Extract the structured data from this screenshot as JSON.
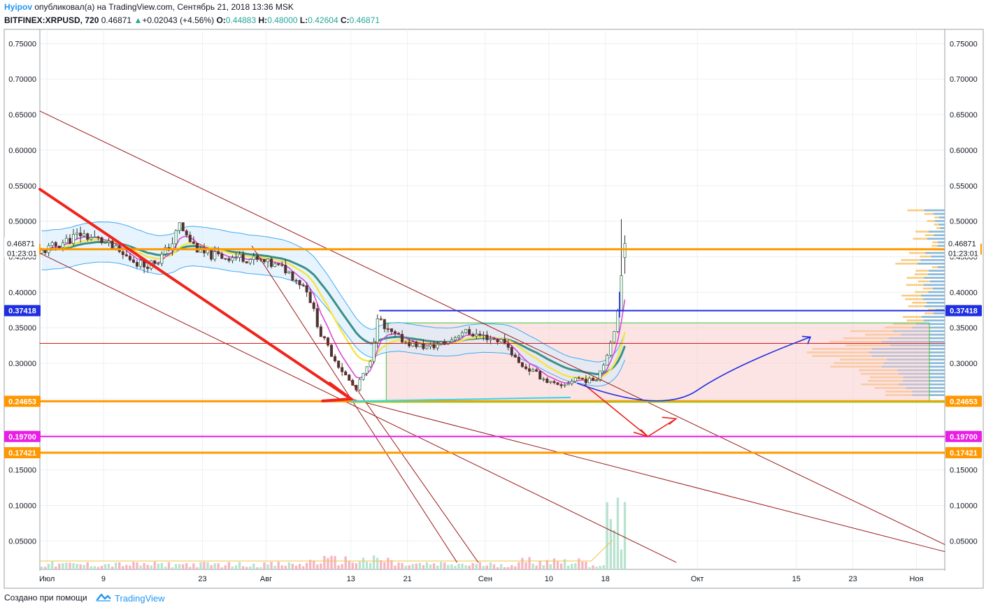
{
  "header": {
    "author": "Hyipov",
    "published_text": " опубликовал(а) на TradingView.com, Сентябрь 21, 2018 13:36 MSK",
    "symbol": "BITFINEX:XRPUSD, 720",
    "last": "0.46871",
    "change_arrow": "▲",
    "change": "+0.02043 (+4.56%)",
    "o_label": "O:",
    "o_value": "0.44883",
    "h_label": "H:",
    "h_value": "0.48000",
    "l_label": "L:",
    "l_value": "0.42604",
    "c_label": "C:",
    "c_value": "0.46871"
  },
  "footer": {
    "created_with": "Создано при помощи",
    "brand": "TradingView"
  },
  "colors": {
    "up": "#26a69a",
    "down": "#ef5350",
    "grid": "#eceff2",
    "orange": "#ff9800",
    "blue": "#1e2ee0",
    "magenta": "#e91ee6",
    "red": "#f0241b",
    "darkred": "#9b1b1b",
    "vol_up": "#b7e3cf",
    "vol_down": "#f5b5bf"
  },
  "chart_data": {
    "type": "candlestick",
    "y_range": [
      0.01,
      0.77
    ],
    "y_ticks": [
      0.75,
      0.7,
      0.65,
      0.6,
      0.55,
      0.5,
      0.45,
      0.4,
      0.35,
      0.3,
      0.25,
      0.2,
      0.15,
      0.1,
      0.05
    ],
    "y_tick_labels": [
      "0.75000",
      "0.70000",
      "0.65000",
      "0.60000",
      "0.55000",
      "0.50000",
      "0.45000",
      "0.40000",
      "0.35000",
      "0.30000",
      "0.25000",
      "0.20000",
      "0.15000",
      "0.10000",
      "0.05000"
    ],
    "x_range": [
      "2018-06-30",
      "2018-11-05"
    ],
    "x_ticks": [
      {
        "date": "2018-07-01",
        "label": "Июл"
      },
      {
        "date": "2018-07-09",
        "label": "9"
      },
      {
        "date": "2018-07-23",
        "label": "23"
      },
      {
        "date": "2018-08-01",
        "label": "Авг"
      },
      {
        "date": "2018-08-13",
        "label": "13"
      },
      {
        "date": "2018-08-21",
        "label": "21"
      },
      {
        "date": "2018-09-01",
        "label": "Сен"
      },
      {
        "date": "2018-09-10",
        "label": "10"
      },
      {
        "date": "2018-09-18",
        "label": "18"
      },
      {
        "date": "2018-10-01",
        "label": "Окт"
      },
      {
        "date": "2018-10-15",
        "label": "15"
      },
      {
        "date": "2018-10-23",
        "label": "23"
      },
      {
        "date": "2018-11-01",
        "label": "Ноя"
      }
    ],
    "price_close_path": [
      [
        "2018-06-30",
        0.455
      ],
      [
        "2018-07-03",
        0.468
      ],
      [
        "2018-07-06",
        0.482
      ],
      [
        "2018-07-09",
        0.472
      ],
      [
        "2018-07-12",
        0.452
      ],
      [
        "2018-07-15",
        0.438
      ],
      [
        "2018-07-17",
        0.445
      ],
      [
        "2018-07-19",
        0.47
      ],
      [
        "2018-07-20",
        0.495
      ],
      [
        "2018-07-21",
        0.478
      ],
      [
        "2018-07-23",
        0.455
      ],
      [
        "2018-07-26",
        0.45
      ],
      [
        "2018-07-29",
        0.449
      ],
      [
        "2018-08-01",
        0.442
      ],
      [
        "2018-08-04",
        0.432
      ],
      [
        "2018-08-07",
        0.405
      ],
      [
        "2018-08-09",
        0.34
      ],
      [
        "2018-08-11",
        0.305
      ],
      [
        "2018-08-13",
        0.275
      ],
      [
        "2018-08-14",
        0.262
      ],
      [
        "2018-08-15",
        0.285
      ],
      [
        "2018-08-16",
        0.3
      ],
      [
        "2018-08-17",
        0.368
      ],
      [
        "2018-08-18",
        0.348
      ],
      [
        "2018-08-21",
        0.33
      ],
      [
        "2018-08-24",
        0.322
      ],
      [
        "2018-08-27",
        0.33
      ],
      [
        "2018-08-29",
        0.345
      ],
      [
        "2018-09-01",
        0.338
      ],
      [
        "2018-09-04",
        0.33
      ],
      [
        "2018-09-06",
        0.3
      ],
      [
        "2018-09-08",
        0.288
      ],
      [
        "2018-09-10",
        0.275
      ],
      [
        "2018-09-12",
        0.265
      ],
      [
        "2018-09-14",
        0.28
      ],
      [
        "2018-09-16",
        0.275
      ],
      [
        "2018-09-17",
        0.28
      ],
      [
        "2018-09-18",
        0.3
      ],
      [
        "2018-09-19",
        0.33
      ],
      [
        "2018-09-20",
        0.37
      ],
      [
        "2018-09-21",
        0.46871
      ]
    ],
    "ohlc_last": {
      "open": 0.44883,
      "high": 0.48,
      "low": 0.42604,
      "close": 0.46871
    },
    "horizontal_levels": [
      {
        "value": 0.46059,
        "label": "0.46059",
        "color": "#ff9800"
      },
      {
        "value": 0.37418,
        "label": "0.37418",
        "color": "#1e2ee0"
      },
      {
        "value": 0.24653,
        "label": "0.24653",
        "color": "#ff9800"
      },
      {
        "value": 0.197,
        "label": "0.19700",
        "color": "#e91ee6"
      },
      {
        "value": 0.17421,
        "label": "0.17421",
        "color": "#ff9800"
      }
    ],
    "current_price_label": {
      "value": 0.46871,
      "label": "0.46871",
      "countdown": "01:23:01"
    },
    "projection": "rounded bottom then rise toward 0.335 around 2018-10-17"
  }
}
